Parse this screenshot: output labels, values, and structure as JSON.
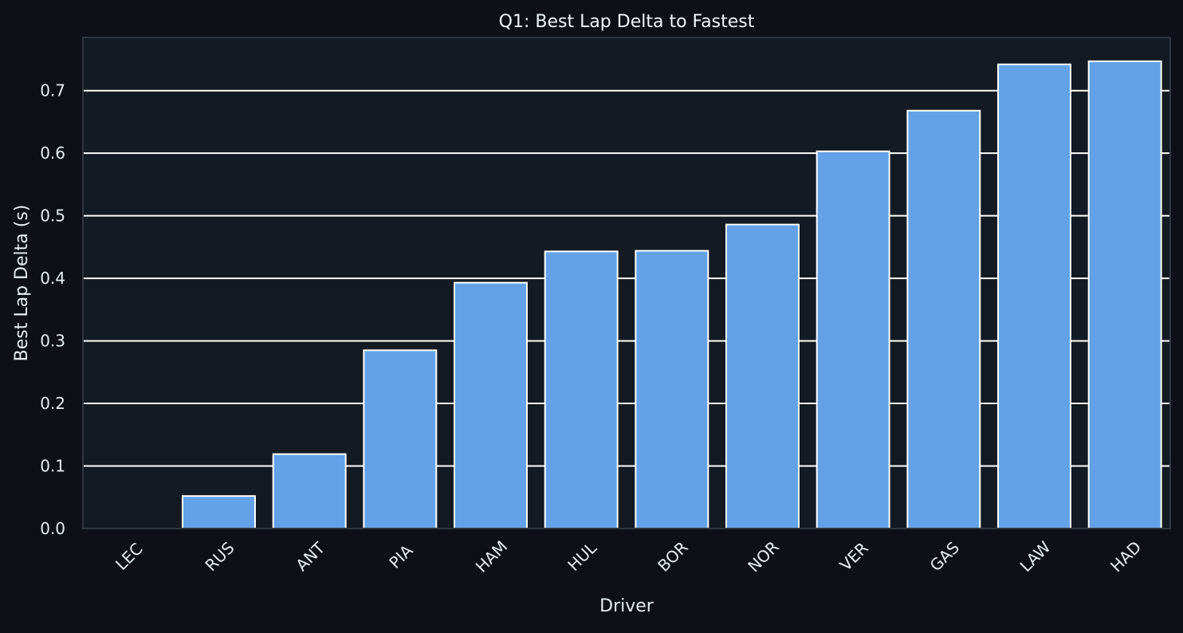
{
  "chart_data": {
    "type": "bar",
    "title": "Q1: Best Lap Delta to Fastest",
    "xlabel": "Driver",
    "ylabel": "Best Lap Delta (s)",
    "categories": [
      "LEC",
      "RUS",
      "ANT",
      "PIA",
      "HAM",
      "HUL",
      "BOR",
      "NOR",
      "VER",
      "GAS",
      "LAW",
      "HAD"
    ],
    "values": [
      0.0,
      0.052,
      0.119,
      0.285,
      0.393,
      0.443,
      0.444,
      0.486,
      0.603,
      0.668,
      0.742,
      0.747
    ],
    "ylim": [
      0,
      0.785
    ],
    "yticks": [
      "0.0",
      "0.1",
      "0.2",
      "0.3",
      "0.4",
      "0.5",
      "0.6",
      "0.7"
    ],
    "grid": true,
    "legend": false,
    "colors": {
      "page_background": "#0d1117",
      "plot_background": "#131a22",
      "bar": "#64a2e8",
      "bar_edge": "#ffffff",
      "grid": "#ffffff",
      "frame": "#30363d",
      "text": "#e6edf3"
    }
  }
}
